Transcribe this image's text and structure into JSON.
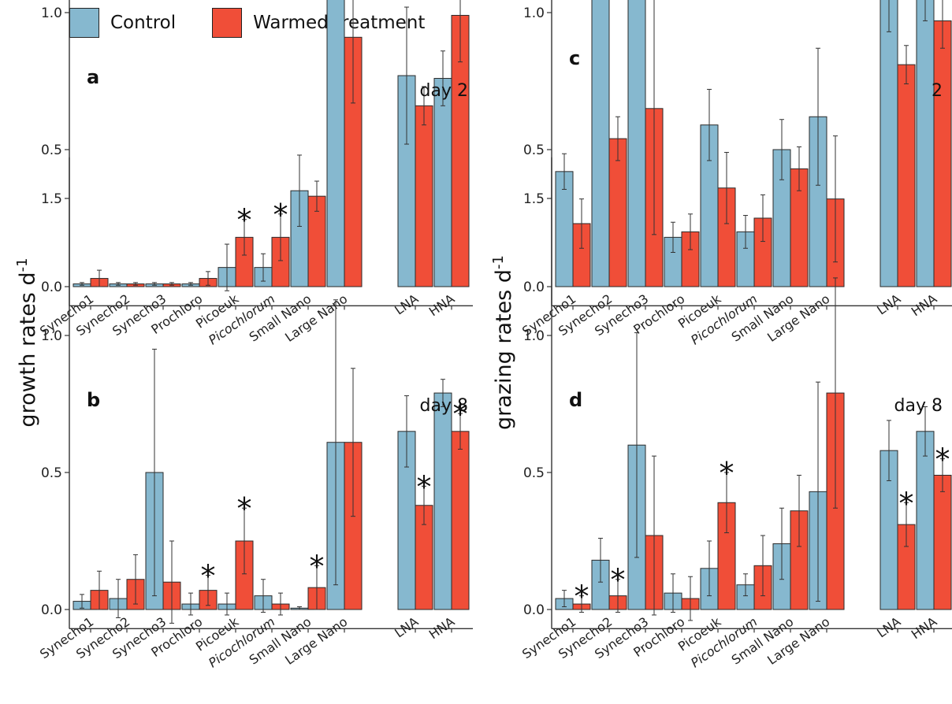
{
  "legend": [
    {
      "label": "Control",
      "color": "#86b8cf"
    },
    {
      "label": "Warmed treatment",
      "color": "#f04e38"
    }
  ],
  "colors": {
    "control": "#86b8cf",
    "warmed": "#f04e38",
    "axis": "#333333"
  },
  "chart_data": [
    {
      "type": "bar",
      "panel_label": "a",
      "tag": "day 2",
      "ylabel": "growth rates d-1",
      "ylim": [
        -0.07,
        1.65
      ],
      "yticks": [
        0.0,
        0.5,
        1.0,
        1.5
      ],
      "grid": false,
      "legend_placement": "top-left",
      "categories": [
        "Synecho1",
        "Synecho2",
        "Synecho3",
        "Prochloro",
        "Picoeuk",
        "Picochlorum",
        "Small Nano",
        "Large Nano",
        "LNA",
        "HNA"
      ],
      "series": [
        {
          "name": "Control",
          "values": [
            0.01,
            0.01,
            0.01,
            0.01,
            0.07,
            0.07,
            0.35,
            1.16,
            0.77,
            0.76
          ],
          "errors": [
            0.005,
            0.005,
            0.005,
            0.005,
            0.085,
            0.05,
            0.13,
            0.08,
            0.25,
            0.1
          ],
          "significant": [
            false,
            false,
            false,
            false,
            false,
            false,
            false,
            false,
            false,
            false
          ]
        },
        {
          "name": "Warmed treatment",
          "values": [
            0.03,
            0.01,
            0.01,
            0.03,
            0.18,
            0.18,
            0.33,
            0.91,
            0.66,
            0.99
          ],
          "errors": [
            0.03,
            0.005,
            0.005,
            0.025,
            0.065,
            0.085,
            0.055,
            0.24,
            0.07,
            0.17
          ],
          "significant": [
            false,
            false,
            false,
            false,
            true,
            true,
            false,
            false,
            false,
            true
          ]
        }
      ]
    },
    {
      "type": "bar",
      "panel_label": "b",
      "tag": "day 8",
      "ylabel": "growth rates d-1",
      "ylim": [
        -0.07,
        1.65
      ],
      "yticks": [
        0.0,
        0.5,
        1.0,
        1.5
      ],
      "grid": false,
      "categories": [
        "Synecho1",
        "Synecho2",
        "Synecho3",
        "Prochloro",
        "Picoeuk",
        "Picochlorum",
        "Small Nano",
        "Large Nano",
        "LNA",
        "HNA"
      ],
      "series": [
        {
          "name": "Control",
          "values": [
            0.03,
            0.04,
            0.5,
            0.02,
            0.02,
            0.05,
            0.005,
            0.61,
            0.65,
            0.79
          ],
          "errors": [
            0.025,
            0.07,
            0.45,
            0.04,
            0.04,
            0.06,
            0.005,
            0.52,
            0.13,
            0.05
          ],
          "significant": [
            false,
            false,
            false,
            false,
            false,
            false,
            false,
            false,
            false,
            false
          ]
        },
        {
          "name": "Warmed treatment",
          "values": [
            0.07,
            0.11,
            0.1,
            0.07,
            0.25,
            0.02,
            0.08,
            0.61,
            0.38,
            0.65
          ],
          "errors": [
            0.07,
            0.09,
            0.15,
            0.055,
            0.12,
            0.04,
            0.08,
            0.27,
            0.07,
            0.065
          ],
          "significant": [
            false,
            false,
            false,
            true,
            true,
            false,
            true,
            false,
            true,
            true
          ]
        }
      ]
    },
    {
      "type": "bar",
      "panel_label": "c",
      "tag": "2",
      "ylabel": "grazing rates d-1",
      "ylim": [
        -0.07,
        1.65
      ],
      "yticks": [
        0.0,
        0.5,
        1.0,
        1.5
      ],
      "grid": false,
      "categories": [
        "Synecho1",
        "Synecho2",
        "Synecho3",
        "Prochloro",
        "Picoeuk",
        "Picochlorum",
        "Small Nano",
        "Large Nano",
        "LNA",
        "HNA"
      ],
      "series": [
        {
          "name": "Control",
          "values": [
            0.42,
            1.25,
            1.39,
            0.18,
            0.59,
            0.2,
            0.5,
            0.62,
            1.19,
            1.09
          ],
          "errors": [
            0.065,
            0.07,
            0.16,
            0.055,
            0.13,
            0.06,
            0.11,
            0.25,
            0.26,
            0.12
          ],
          "significant": [
            false,
            false,
            false,
            false,
            false,
            false,
            false,
            false,
            false,
            false
          ]
        },
        {
          "name": "Warmed treatment",
          "values": [
            0.23,
            0.54,
            0.65,
            0.2,
            0.36,
            0.25,
            0.43,
            0.32,
            0.81,
            0.97
          ],
          "errors": [
            0.09,
            0.08,
            0.46,
            0.065,
            0.13,
            0.085,
            0.08,
            0.23,
            0.07,
            0.1
          ],
          "significant": [
            false,
            false,
            false,
            false,
            false,
            false,
            false,
            false,
            false,
            false
          ]
        }
      ]
    },
    {
      "type": "bar",
      "panel_label": "d",
      "tag": "day 8",
      "ylabel": "grazing rates d-1",
      "ylim": [
        -0.07,
        1.65
      ],
      "yticks": [
        0.0,
        0.5,
        1.0,
        1.5
      ],
      "grid": false,
      "categories": [
        "Synecho1",
        "Synecho2",
        "Synecho3",
        "Prochloro",
        "Picoeuk",
        "Picochlorum",
        "Small Nano",
        "Large Nano",
        "LNA",
        "HNA"
      ],
      "series": [
        {
          "name": "Control",
          "values": [
            0.04,
            0.18,
            0.6,
            0.06,
            0.15,
            0.09,
            0.24,
            0.43,
            0.58,
            0.65
          ],
          "errors": [
            0.03,
            0.08,
            0.41,
            0.07,
            0.1,
            0.04,
            0.13,
            0.4,
            0.11,
            0.09
          ],
          "significant": [
            false,
            false,
            false,
            false,
            false,
            false,
            false,
            false,
            false,
            false
          ]
        },
        {
          "name": "Warmed treatment",
          "values": [
            0.02,
            0.05,
            0.27,
            0.04,
            0.39,
            0.16,
            0.36,
            0.79,
            0.31,
            0.49
          ],
          "errors": [
            0.03,
            0.06,
            0.29,
            0.08,
            0.11,
            0.11,
            0.13,
            0.42,
            0.08,
            0.06
          ],
          "significant": [
            true,
            true,
            false,
            false,
            true,
            false,
            false,
            false,
            true,
            true
          ]
        }
      ]
    }
  ],
  "italic_categories": [
    "Picochlorum"
  ],
  "significance_marker": "*"
}
